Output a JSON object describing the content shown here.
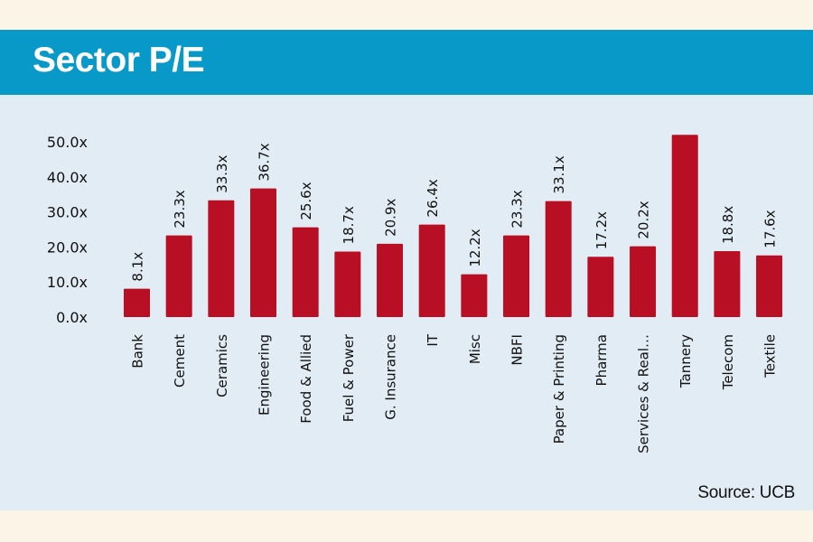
{
  "header": {
    "title": "Sector P/E"
  },
  "source": "Source: UCB",
  "colors": {
    "background": "#fdf4e8",
    "header": "#0899c9",
    "panel": "#e2ecf4",
    "bar": "#b80f24"
  },
  "chart_data": {
    "type": "bar",
    "title": "Sector P/E",
    "xlabel": "",
    "ylabel": "",
    "ylim": [
      0,
      50
    ],
    "yticks": [
      0,
      10,
      20,
      30,
      40,
      50
    ],
    "ytick_labels": [
      "0.0x",
      "10.0x",
      "20.0x",
      "30.0x",
      "40.0x",
      "50.0x"
    ],
    "grid": false,
    "categories": [
      "Bank",
      "Cement",
      "Ceramics",
      "Engineering",
      "Food & Allied",
      "Fuel & Power",
      "G. Insurance",
      "IT",
      "Misc",
      "NBFI",
      "Paper & Printing",
      "Pharma",
      "Services & Real…",
      "Tannery",
      "Telecom",
      "Textile"
    ],
    "values": [
      8.1,
      23.3,
      33.3,
      36.7,
      25.6,
      18.7,
      20.9,
      26.4,
      12.2,
      23.3,
      33.1,
      17.2,
      20.2,
      52.0,
      18.8,
      17.6
    ],
    "data_labels": [
      "8.1x",
      "23.3x",
      "33.3x",
      "36.7x",
      "25.6x",
      "18.7x",
      "20.9x",
      "26.4x",
      "12.2x",
      "23.3x",
      "33.1x",
      "17.2x",
      "20.2x",
      "",
      "18.8x",
      "17.6x"
    ]
  }
}
